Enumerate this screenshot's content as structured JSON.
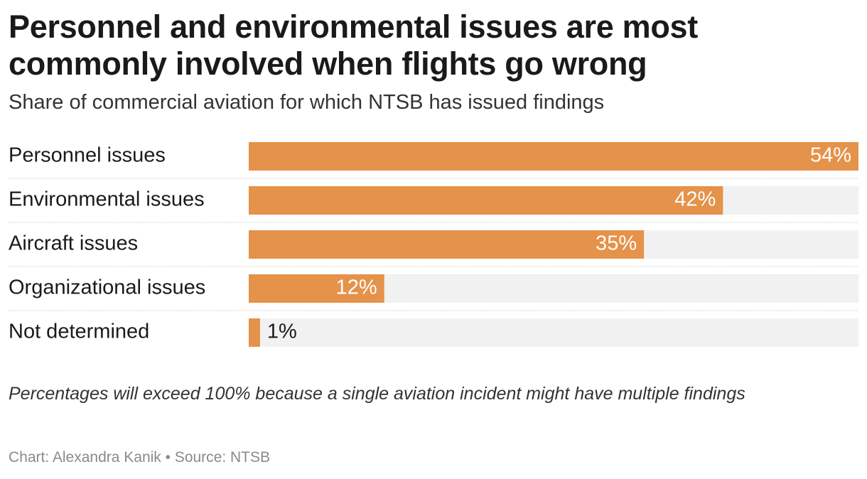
{
  "chart_data": {
    "type": "bar",
    "orientation": "horizontal",
    "title": "Personnel and environmental issues are most commonly involved when flights go wrong",
    "subtitle": "Share of commercial aviation for which NTSB has issued findings",
    "categories": [
      "Personnel issues",
      "Environmental issues",
      "Aircraft issues",
      "Organizational issues",
      "Not determined"
    ],
    "values": [
      54,
      42,
      35,
      12,
      1
    ],
    "value_labels": [
      "54%",
      "42%",
      "35%",
      "12%",
      "1%"
    ],
    "color": "#e5924a",
    "xlim": [
      0,
      54
    ],
    "note": "Percentages will exceed 100% because a single aviation incident might have multiple findings",
    "credit": "Chart: Alexandra Kanik • Source: NTSB"
  }
}
